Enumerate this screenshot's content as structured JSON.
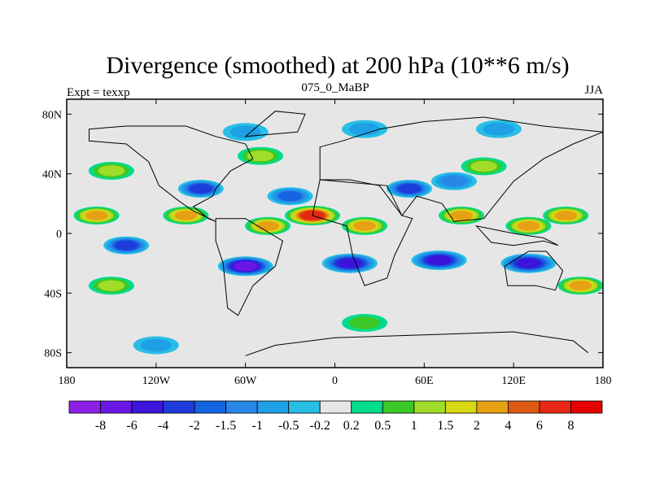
{
  "chart_data": {
    "type": "heatmap",
    "title": "Divergence (smoothed) at 200 hPa (10**6 m/s)",
    "left_string": "Expt = texxp",
    "center_string": "075_0_MaBP",
    "right_string": "JJA",
    "x_range": [
      -180,
      180
    ],
    "y_range": [
      -90,
      90
    ],
    "x_ticks": [
      {
        "value": -180,
        "label": "180"
      },
      {
        "value": -120,
        "label": "120W"
      },
      {
        "value": -60,
        "label": "60W"
      },
      {
        "value": 0,
        "label": "0"
      },
      {
        "value": 60,
        "label": "60E"
      },
      {
        "value": 120,
        "label": "120E"
      },
      {
        "value": 180,
        "label": "180"
      }
    ],
    "y_ticks": [
      {
        "value": 80,
        "label": "80N"
      },
      {
        "value": 40,
        "label": "40N"
      },
      {
        "value": 0,
        "label": "0"
      },
      {
        "value": -40,
        "label": "40S"
      },
      {
        "value": -80,
        "label": "80S"
      }
    ],
    "colorbar": {
      "labels": [
        "-8",
        "-6",
        "-4",
        "-2",
        "-1.5",
        "-1",
        "-0.5",
        "-0.2",
        "0.2",
        "0.5",
        "1",
        "1.5",
        "2",
        "4",
        "6",
        "8"
      ],
      "colors": [
        "#8c20e6",
        "#6a17e6",
        "#3c14dc",
        "#1e3cdc",
        "#1464e1",
        "#2887e6",
        "#1ea0e6",
        "#28bee6",
        "#e6e6e6",
        "#00dc8c",
        "#3cc828",
        "#a0dc28",
        "#d7d714",
        "#e6a014",
        "#dc5a14",
        "#e62814",
        "#e60000"
      ]
    },
    "features": [
      {
        "lon": -100,
        "lat": 12,
        "value": 3.5
      },
      {
        "lon": -160,
        "lat": 12,
        "value": 2.5
      },
      {
        "lon": -15,
        "lat": 12,
        "value": 7
      },
      {
        "lon": -45,
        "lat": 5,
        "value": 3
      },
      {
        "lon": 20,
        "lat": 5,
        "value": 2.5
      },
      {
        "lon": 85,
        "lat": 12,
        "value": 3.5
      },
      {
        "lon": 130,
        "lat": 5,
        "value": 3
      },
      {
        "lon": 155,
        "lat": 12,
        "value": 2.5
      },
      {
        "lon": -60,
        "lat": -22,
        "value": -6
      },
      {
        "lon": 10,
        "lat": -20,
        "value": -5
      },
      {
        "lon": 70,
        "lat": -18,
        "value": -5
      },
      {
        "lon": 130,
        "lat": -20,
        "value": -4
      },
      {
        "lon": -140,
        "lat": -8,
        "value": -3
      },
      {
        "lon": -90,
        "lat": 30,
        "value": -2
      },
      {
        "lon": -30,
        "lat": 25,
        "value": -1.5
      },
      {
        "lon": 50,
        "lat": 30,
        "value": -2.5
      },
      {
        "lon": 80,
        "lat": 35,
        "value": -1
      },
      {
        "lon": -150,
        "lat": 42,
        "value": 1
      },
      {
        "lon": -50,
        "lat": 52,
        "value": 1
      },
      {
        "lon": 100,
        "lat": 45,
        "value": 1
      },
      {
        "lon": -150,
        "lat": -35,
        "value": 1
      },
      {
        "lon": 165,
        "lat": -35,
        "value": 2
      },
      {
        "lon": -60,
        "lat": 68,
        "value": -0.8
      },
      {
        "lon": 20,
        "lat": 70,
        "value": -0.6
      },
      {
        "lon": 110,
        "lat": 70,
        "value": -0.5
      },
      {
        "lon": -120,
        "lat": -75,
        "value": -0.5
      },
      {
        "lon": 20,
        "lat": -60,
        "value": 0.5
      }
    ]
  }
}
